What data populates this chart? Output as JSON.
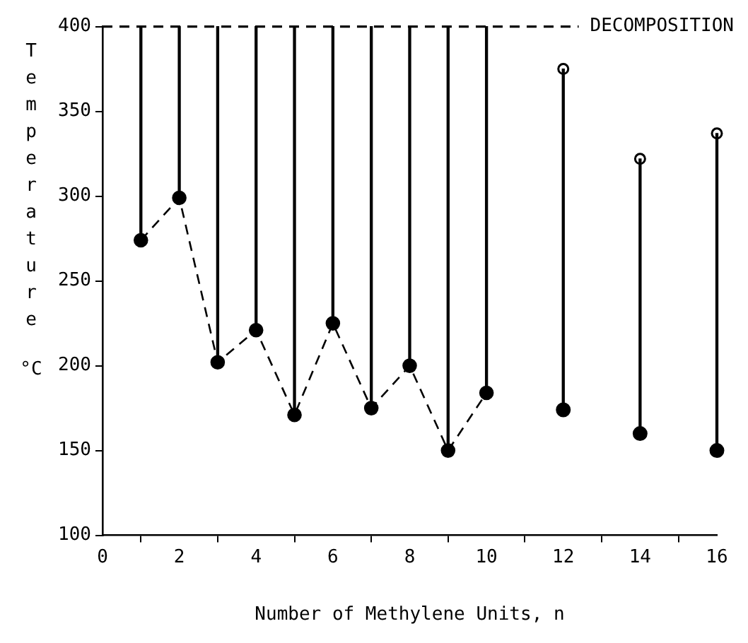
{
  "chart_data": {
    "type": "scatter",
    "xlabel": "Number of Methylene Units, n",
    "ylabel": "Temperature °C",
    "xlim": [
      0,
      16
    ],
    "xticks": [
      0,
      2,
      4,
      6,
      8,
      10,
      12,
      14,
      16
    ],
    "ylim": [
      100,
      400
    ],
    "yticks": [
      100,
      150,
      200,
      250,
      300,
      350,
      400
    ],
    "grid": false,
    "legend": false,
    "ref_lines": [
      {
        "axis": "y",
        "value": 400,
        "label": "DECOMPOSITION",
        "line_style": "dashed",
        "color": "#000000"
      }
    ],
    "series": [
      {
        "type": "bar",
        "color": "#000000",
        "x": [
          1,
          2,
          3,
          4,
          5,
          6,
          7,
          8,
          9,
          10,
          12,
          14,
          16
        ],
        "base": [
          274,
          299,
          202,
          221,
          171,
          225,
          175,
          200,
          150,
          184,
          174,
          160,
          150
        ],
        "values": [
          126,
          101,
          198,
          179,
          229,
          175,
          225,
          200,
          250,
          216,
          201,
          162,
          187
        ]
      },
      {
        "type": "line",
        "color": "#000000",
        "line_style": "dashed",
        "marker": "circle",
        "x": [
          1,
          2,
          3,
          4,
          5,
          6,
          7,
          8,
          9,
          10
        ],
        "values": [
          274,
          299,
          202,
          221,
          171,
          225,
          175,
          200,
          150,
          184
        ]
      },
      {
        "type": "scatter",
        "color": "#000000",
        "marker": "circle",
        "x": [
          12,
          14,
          16
        ],
        "values": [
          174,
          160,
          150
        ]
      },
      {
        "type": "scatter",
        "color": "#000000",
        "marker": "circle",
        "x": [
          12,
          14,
          16
        ],
        "values": [
          375,
          322,
          337
        ]
      }
    ]
  }
}
